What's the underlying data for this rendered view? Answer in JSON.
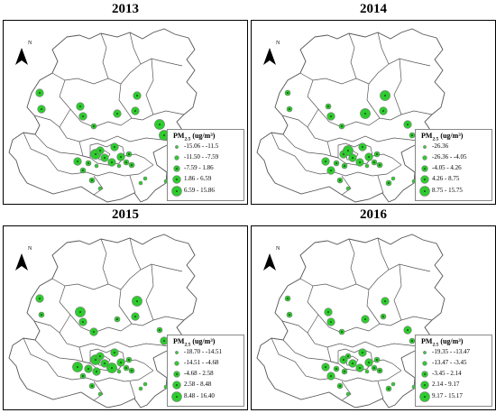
{
  "legend_title_main": "PM",
  "legend_title_sub": "2.5",
  "legend_title_unit": " (ug/m³)",
  "north_label": "N",
  "colors": {
    "point": "#2ecc2e",
    "outline": "#7a7a7a",
    "map_line": "#555555"
  },
  "panels": [
    {
      "year": "2013",
      "classes": [
        "-15.06 - -11.5",
        "-11.50 - -7.59",
        "-7.59 - 1.86",
        "1.86 - 6.59",
        "6.59 - 15.86"
      ],
      "points": [
        [
          40,
          80,
          3
        ],
        [
          42,
          98,
          3
        ],
        [
          85,
          95,
          3
        ],
        [
          88,
          106,
          3
        ],
        [
          100,
          117,
          2
        ],
        [
          126,
          103,
          3
        ],
        [
          146,
          100,
          3
        ],
        [
          148,
          83,
          3
        ],
        [
          173,
          115,
          4
        ],
        [
          178,
          127,
          4
        ],
        [
          102,
          148,
          4
        ],
        [
          107,
          144,
          3
        ],
        [
          120,
          157,
          3
        ],
        [
          123,
          140,
          3
        ],
        [
          130,
          151,
          3
        ],
        [
          136,
          157,
          2
        ],
        [
          139,
          148,
          2
        ],
        [
          143,
          160,
          1
        ],
        [
          128,
          161,
          1
        ],
        [
          103,
          161,
          1
        ],
        [
          82,
          156,
          3
        ],
        [
          94,
          158,
          2
        ],
        [
          88,
          166,
          2
        ],
        [
          98,
          177,
          2
        ],
        [
          107,
          186,
          1
        ],
        [
          152,
          180,
          1
        ],
        [
          157,
          175,
          1
        ],
        [
          120,
          207,
          2
        ],
        [
          180,
          178,
          1
        ],
        [
          142,
          160,
          2
        ],
        [
          112,
          152,
          3
        ]
      ]
    },
    {
      "year": "2014",
      "classes": [
        "-26.36",
        "-26.36 - -4.05",
        "-4.05 - 4.26",
        "4.26 - 8.75",
        "8.75 - 15.75"
      ],
      "points": [
        [
          40,
          80,
          2
        ],
        [
          42,
          98,
          2
        ],
        [
          85,
          95,
          2
        ],
        [
          88,
          106,
          3
        ],
        [
          100,
          117,
          2
        ],
        [
          126,
          103,
          4
        ],
        [
          146,
          100,
          3
        ],
        [
          148,
          83,
          4
        ],
        [
          173,
          115,
          3
        ],
        [
          178,
          127,
          2
        ],
        [
          102,
          148,
          3
        ],
        [
          107,
          144,
          4
        ],
        [
          120,
          157,
          3
        ],
        [
          123,
          140,
          3
        ],
        [
          130,
          151,
          3
        ],
        [
          136,
          157,
          2
        ],
        [
          139,
          148,
          2
        ],
        [
          143,
          160,
          1
        ],
        [
          128,
          161,
          1
        ],
        [
          103,
          161,
          2
        ],
        [
          82,
          156,
          3
        ],
        [
          94,
          158,
          2
        ],
        [
          88,
          166,
          3
        ],
        [
          98,
          177,
          2
        ],
        [
          107,
          186,
          1
        ],
        [
          152,
          180,
          2
        ],
        [
          157,
          175,
          1
        ],
        [
          120,
          207,
          2
        ],
        [
          180,
          178,
          1
        ],
        [
          142,
          160,
          2
        ],
        [
          112,
          152,
          3
        ]
      ]
    },
    {
      "year": "2015",
      "classes": [
        "-18.70 - -14.51",
        "-14.51 - -4.68",
        "-4.68 - 2.58",
        "2.58 - 8.48",
        "8.48 - 16.40"
      ],
      "points": [
        [
          40,
          80,
          3
        ],
        [
          42,
          98,
          2
        ],
        [
          85,
          95,
          4
        ],
        [
          88,
          106,
          3
        ],
        [
          100,
          117,
          3
        ],
        [
          126,
          103,
          2
        ],
        [
          146,
          100,
          3
        ],
        [
          148,
          83,
          4
        ],
        [
          173,
          115,
          2
        ],
        [
          178,
          127,
          3
        ],
        [
          102,
          148,
          4
        ],
        [
          107,
          144,
          3
        ],
        [
          120,
          157,
          4
        ],
        [
          123,
          140,
          3
        ],
        [
          130,
          151,
          3
        ],
        [
          136,
          157,
          2
        ],
        [
          139,
          148,
          2
        ],
        [
          143,
          160,
          1
        ],
        [
          128,
          161,
          1
        ],
        [
          103,
          161,
          3
        ],
        [
          82,
          156,
          4
        ],
        [
          94,
          158,
          3
        ],
        [
          88,
          166,
          2
        ],
        [
          98,
          177,
          2
        ],
        [
          107,
          186,
          1
        ],
        [
          152,
          180,
          1
        ],
        [
          157,
          175,
          1
        ],
        [
          120,
          207,
          2
        ],
        [
          180,
          178,
          1
        ],
        [
          142,
          160,
          2
        ],
        [
          112,
          152,
          3
        ]
      ]
    },
    {
      "year": "2016",
      "classes": [
        "-19.35 - -13.47",
        "-13.47 - -3.45",
        "-3.45 - 2.14",
        "2.14 - 9.17",
        "9.17 - 15.17"
      ],
      "points": [
        [
          40,
          80,
          2
        ],
        [
          42,
          98,
          2
        ],
        [
          85,
          95,
          3
        ],
        [
          88,
          106,
          3
        ],
        [
          100,
          117,
          2
        ],
        [
          126,
          103,
          3
        ],
        [
          146,
          100,
          2
        ],
        [
          148,
          83,
          3
        ],
        [
          173,
          115,
          3
        ],
        [
          178,
          127,
          2
        ],
        [
          102,
          148,
          3
        ],
        [
          107,
          144,
          2
        ],
        [
          120,
          157,
          3
        ],
        [
          123,
          140,
          3
        ],
        [
          130,
          151,
          3
        ],
        [
          136,
          157,
          2
        ],
        [
          139,
          148,
          2
        ],
        [
          143,
          160,
          1
        ],
        [
          128,
          161,
          1
        ],
        [
          103,
          161,
          2
        ],
        [
          82,
          156,
          3
        ],
        [
          94,
          158,
          2
        ],
        [
          88,
          166,
          3
        ],
        [
          98,
          177,
          2
        ],
        [
          107,
          186,
          1
        ],
        [
          152,
          180,
          2
        ],
        [
          157,
          175,
          1
        ],
        [
          120,
          207,
          2
        ],
        [
          180,
          178,
          1
        ],
        [
          142,
          160,
          2
        ],
        [
          112,
          152,
          3
        ]
      ]
    }
  ]
}
